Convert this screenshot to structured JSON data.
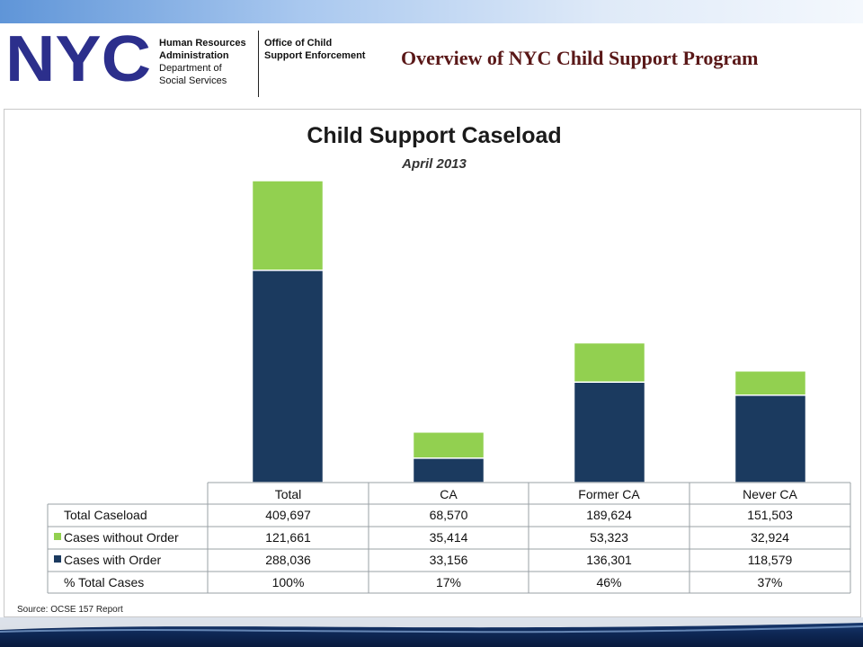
{
  "header": {
    "logo_text": "NYC",
    "hra_line1": "Human Resources",
    "hra_line2": "Administration",
    "hra_line3": "Department of",
    "hra_line4": "Social Services",
    "ocse_line1": "Office of Child",
    "ocse_line2": "Support Enforcement",
    "page_title": "Overview of NYC Child Support Program"
  },
  "colors": {
    "with_order": "#1b3a5f",
    "without_order": "#92d050",
    "title_red": "#5a1818"
  },
  "chart_data": {
    "type": "bar",
    "stacked": true,
    "title": "Child Support Caseload",
    "subtitle": "April 2013",
    "categories": [
      "Total",
      "CA",
      "Former CA",
      "Never CA"
    ],
    "series": [
      {
        "name": "Cases with Order",
        "values": [
          288036,
          33156,
          136301,
          118579
        ]
      },
      {
        "name": "Cases without Order",
        "values": [
          121661,
          35414,
          53323,
          32924
        ]
      }
    ],
    "grid": false,
    "table": {
      "headers": [
        "Total",
        "CA",
        "Former CA",
        "Never CA"
      ],
      "rows": [
        {
          "label": "Total Caseload",
          "values": [
            "409,697",
            "68,570",
            "189,624",
            "151,503"
          ]
        },
        {
          "label": "Cases without Order",
          "values": [
            "121,661",
            "35,414",
            "53,323",
            "32,924"
          ]
        },
        {
          "label": "Cases with Order",
          "values": [
            "288,036",
            "33,156",
            "136,301",
            "118,579"
          ]
        },
        {
          "label": "% Total Cases",
          "values": [
            "100%",
            "17%",
            "46%",
            "37%"
          ]
        }
      ]
    },
    "source": "Source: OCSE 157 Report"
  }
}
